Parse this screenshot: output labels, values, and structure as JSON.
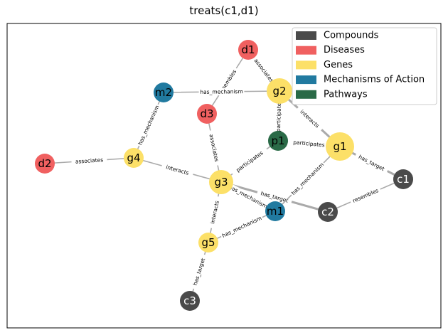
{
  "title": "treats(c1,d1)",
  "colors": {
    "Compounds": "#4a4a4a",
    "Diseases": "#f06060",
    "Genes": "#fce068",
    "Mechanisms of Action": "#217aa0",
    "Pathways": "#2a6a47"
  },
  "legend": [
    "Compounds",
    "Diseases",
    "Genes",
    "Mechanisms of Action",
    "Pathways"
  ],
  "nodes": [
    {
      "id": "d1",
      "type": "Diseases"
    },
    {
      "id": "g2",
      "type": "Genes"
    },
    {
      "id": "m2",
      "type": "Mechanisms of Action"
    },
    {
      "id": "d3",
      "type": "Diseases"
    },
    {
      "id": "p1",
      "type": "Pathways"
    },
    {
      "id": "g1",
      "type": "Genes"
    },
    {
      "id": "c1",
      "type": "Compounds"
    },
    {
      "id": "d2",
      "type": "Diseases"
    },
    {
      "id": "g4",
      "type": "Genes"
    },
    {
      "id": "g3",
      "type": "Genes"
    },
    {
      "id": "m1",
      "type": "Mechanisms of Action"
    },
    {
      "id": "c2",
      "type": "Compounds"
    },
    {
      "id": "g5",
      "type": "Genes"
    },
    {
      "id": "c3",
      "type": "Compounds"
    }
  ],
  "edges": [
    {
      "source": "d3",
      "target": "d1",
      "label": "resembles"
    },
    {
      "source": "d1",
      "target": "g2",
      "label": "associates"
    },
    {
      "source": "m2",
      "target": "g2",
      "label": "has_mechanism"
    },
    {
      "source": "g2",
      "target": "p1",
      "label": "participates"
    },
    {
      "source": "g2",
      "target": "g1",
      "label": "interacts"
    },
    {
      "source": "p1",
      "target": "g1",
      "label": "participates"
    },
    {
      "source": "g1",
      "target": "c1",
      "label": "has_target"
    },
    {
      "source": "m2",
      "target": "g4",
      "label": "has_mechanism"
    },
    {
      "source": "d2",
      "target": "g4",
      "label": "associates"
    },
    {
      "source": "g4",
      "target": "g3",
      "label": "interacts"
    },
    {
      "source": "d3",
      "target": "g3",
      "label": "associates"
    },
    {
      "source": "g3",
      "target": "p1",
      "label": "participates"
    },
    {
      "source": "g3",
      "target": "c2",
      "label": "has_target"
    },
    {
      "source": "g3",
      "target": "m1",
      "label": "has_mechanism"
    },
    {
      "source": "m1",
      "target": "g1",
      "label": "has_mechanism"
    },
    {
      "source": "c2",
      "target": "c1",
      "label": "resembles"
    },
    {
      "source": "g3",
      "target": "g5",
      "label": "interacts"
    },
    {
      "source": "g5",
      "target": "m1",
      "label": "has_mechanism"
    },
    {
      "source": "c3",
      "target": "g5",
      "label": "has_target"
    }
  ]
}
